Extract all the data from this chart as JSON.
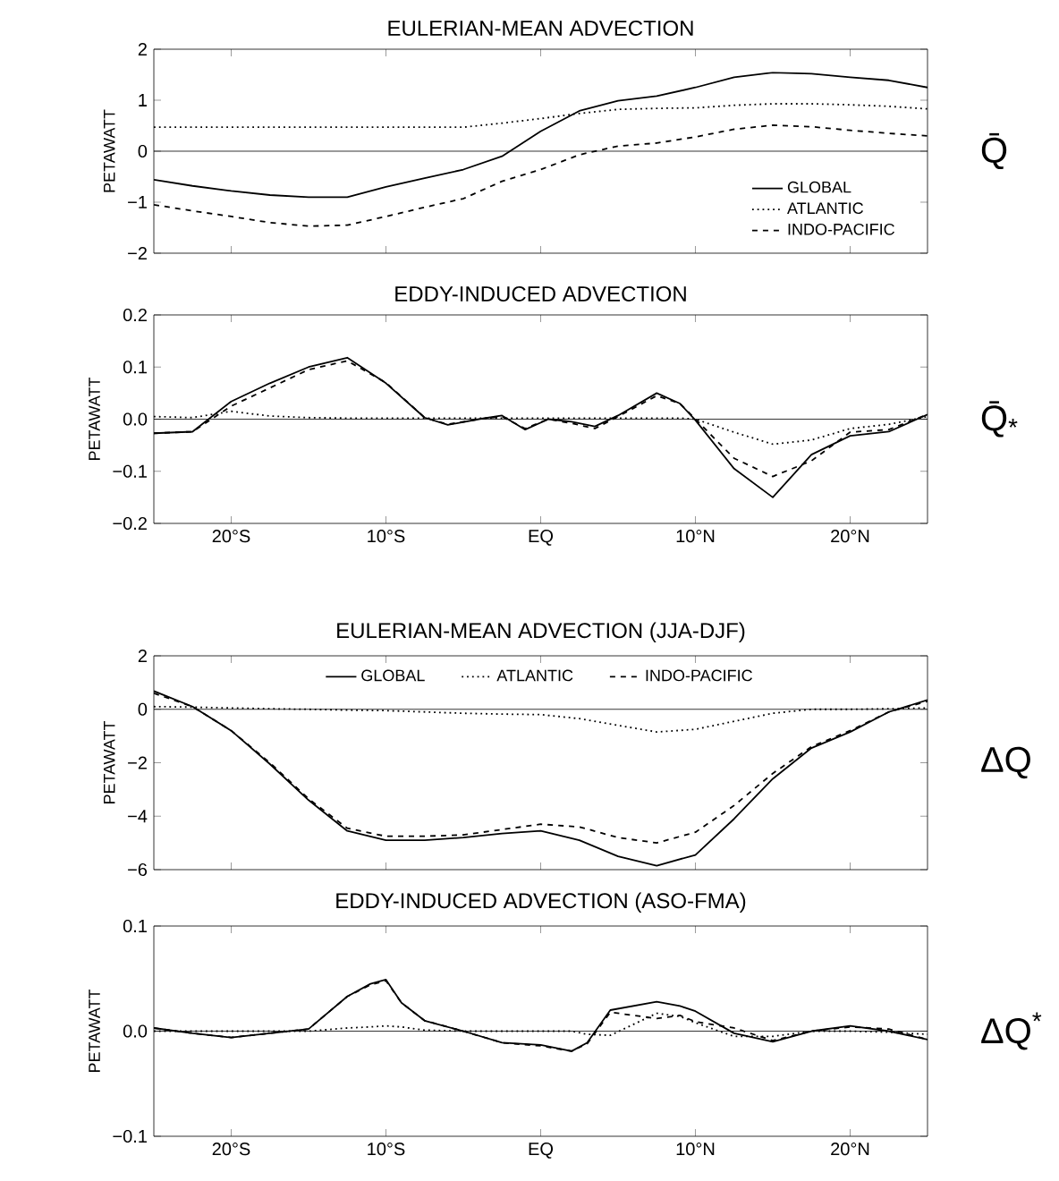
{
  "chart_data": [
    {
      "type": "line",
      "title": "EULERIAN-MEAN ADVECTION",
      "ylabel": "PETAWATT",
      "xlim": [
        -25,
        25
      ],
      "ylim": [
        -2,
        2
      ],
      "xticks": [
        {
          "value": -20,
          "label": null
        },
        {
          "value": -10,
          "label": null
        },
        {
          "value": 0,
          "label": null
        },
        {
          "value": 10,
          "label": null
        },
        {
          "value": 20,
          "label": null
        }
      ],
      "yticks": [
        {
          "value": -2,
          "label": "−2"
        },
        {
          "value": -1,
          "label": "−1"
        },
        0,
        1,
        2
      ],
      "tick_labels": "y",
      "legend": "bottom right",
      "ref_lines": [
        {
          "axis": "y",
          "value": 0
        }
      ],
      "annotations": [
        "Q̄"
      ],
      "x": [
        -25,
        -22.5,
        -20,
        -17.5,
        -15,
        -12.5,
        -10,
        -7.5,
        -5,
        -2.5,
        0,
        2.5,
        5,
        7.5,
        10,
        12.5,
        15,
        17.5,
        20,
        22.5,
        25
      ],
      "series": [
        {
          "name": "GLOBAL",
          "color": "#000000",
          "line_style": "solid",
          "values": [
            -0.56,
            -0.68,
            -0.78,
            -0.86,
            -0.9,
            -0.9,
            -0.7,
            -0.53,
            -0.36,
            -0.1,
            0.39,
            0.79,
            0.99,
            1.08,
            1.25,
            1.45,
            1.54,
            1.52,
            1.45,
            1.39,
            1.25
          ]
        },
        {
          "name": "ATLANTIC",
          "color": "#000000",
          "line_style": "dotted",
          "values": [
            0.47,
            0.47,
            0.47,
            0.47,
            0.47,
            0.47,
            0.47,
            0.47,
            0.47,
            0.55,
            0.64,
            0.74,
            0.82,
            0.84,
            0.85,
            0.9,
            0.93,
            0.93,
            0.91,
            0.88,
            0.83
          ]
        },
        {
          "name": "INDO-PACIFIC",
          "color": "#000000",
          "line_style": "dashed",
          "values": [
            -1.05,
            -1.17,
            -1.28,
            -1.4,
            -1.47,
            -1.45,
            -1.28,
            -1.1,
            -0.93,
            -0.59,
            -0.36,
            -0.07,
            0.1,
            0.16,
            0.28,
            0.43,
            0.51,
            0.48,
            0.41,
            0.35,
            0.3
          ]
        }
      ]
    },
    {
      "type": "line",
      "title": "EDDY-INDUCED ADVECTION",
      "ylabel": "PETAWATT",
      "xlim": [
        -25,
        25
      ],
      "ylim": [
        -0.2,
        0.2
      ],
      "xticks": [
        {
          "value": -20,
          "label": "20°S"
        },
        {
          "value": -10,
          "label": "10°S"
        },
        {
          "value": 0,
          "label": "EQ"
        },
        {
          "value": 10,
          "label": "10°N"
        },
        {
          "value": 20,
          "label": "20°N"
        }
      ],
      "yticks": [
        {
          "value": -0.2,
          "label": "−0.2"
        },
        {
          "value": -0.1,
          "label": "−0.1"
        },
        {
          "value": 0,
          "label": "0.0"
        },
        0.1,
        0.2
      ],
      "ref_lines": [
        {
          "axis": "y",
          "value": 0
        }
      ],
      "annotations": [
        "Q̄$_{*}$"
      ],
      "x": [
        -25,
        -22.5,
        -20,
        -17.5,
        -15,
        -12.5,
        -10,
        -7.5,
        -6,
        -4,
        -2.5,
        -1,
        0.5,
        2,
        3.5,
        5,
        7.5,
        9,
        10,
        12.5,
        15,
        17.5,
        20,
        22.5,
        25
      ],
      "series": [
        {
          "color": "#000000",
          "line_style": "solid",
          "values": [
            -0.027,
            -0.024,
            0.034,
            0.069,
            0.1,
            0.118,
            0.069,
            0.003,
            -0.011,
            0.0,
            0.007,
            -0.02,
            0.0,
            -0.005,
            -0.014,
            0.007,
            0.05,
            0.03,
            -0.002,
            -0.095,
            -0.15,
            -0.068,
            -0.032,
            -0.024,
            0.009
          ]
        },
        {
          "color": "#000000",
          "line_style": "dotted",
          "values": [
            0.005,
            0.003,
            0.015,
            0.006,
            0.003,
            0.002,
            0.002,
            0.002,
            0.002,
            0.002,
            0.002,
            0.002,
            0.002,
            0.002,
            0.002,
            0.002,
            0.002,
            0.002,
            0.0,
            -0.025,
            -0.048,
            -0.04,
            -0.018,
            -0.01,
            0.005
          ]
        },
        {
          "color": "#000000",
          "line_style": "dashed",
          "values": [
            -0.027,
            -0.024,
            0.025,
            0.06,
            0.095,
            0.112,
            0.07,
            0.003,
            -0.01,
            0.0,
            0.005,
            -0.018,
            0.0,
            -0.008,
            -0.018,
            0.005,
            0.045,
            0.03,
            0.0,
            -0.075,
            -0.11,
            -0.08,
            -0.025,
            -0.02,
            0.009
          ]
        }
      ]
    },
    {
      "type": "line",
      "title": "EULERIAN-MEAN ADVECTION (JJA-DJF)",
      "ylabel": "PETAWATT",
      "xlim": [
        -25,
        25
      ],
      "ylim": [
        -6,
        2
      ],
      "xticks": [
        {
          "value": -20,
          "label": null
        },
        {
          "value": -10,
          "label": null
        },
        {
          "value": 0,
          "label": null
        },
        {
          "value": 10,
          "label": null
        },
        {
          "value": 20,
          "label": null
        }
      ],
      "yticks": [
        {
          "value": -6,
          "label": "−6"
        },
        {
          "value": -4,
          "label": "−4"
        },
        {
          "value": -2,
          "label": "−2"
        },
        0,
        2
      ],
      "tick_labels": "y",
      "legend": "top",
      "ref_lines": [
        {
          "axis": "y",
          "value": 0
        }
      ],
      "annotations": [
        "ΔQ"
      ],
      "x": [
        -25,
        -22.5,
        -20,
        -17.5,
        -15,
        -12.5,
        -10,
        -7.5,
        -5,
        -2.5,
        0,
        2.5,
        5,
        7.5,
        10,
        12.5,
        15,
        17.5,
        20,
        22.5,
        25
      ],
      "series": [
        {
          "name": "GLOBAL",
          "color": "#000000",
          "line_style": "solid",
          "values": [
            0.68,
            0.1,
            -0.8,
            -2.05,
            -3.4,
            -4.55,
            -4.9,
            -4.9,
            -4.8,
            -4.65,
            -4.55,
            -4.9,
            -5.5,
            -5.85,
            -5.45,
            -4.1,
            -2.6,
            -1.45,
            -0.85,
            -0.1,
            0.35
          ]
        },
        {
          "name": "ATLANTIC",
          "color": "#000000",
          "line_style": "dotted",
          "values": [
            0.1,
            0.08,
            0.05,
            0.02,
            0.0,
            -0.03,
            -0.05,
            -0.1,
            -0.15,
            -0.18,
            -0.2,
            -0.35,
            -0.6,
            -0.85,
            -0.75,
            -0.45,
            -0.15,
            0.0,
            0.0,
            0.02,
            0.05
          ]
        },
        {
          "name": "INDO-PACIFIC",
          "color": "#000000",
          "line_style": "dashed",
          "values": [
            0.6,
            0.1,
            -0.8,
            -2.0,
            -3.35,
            -4.45,
            -4.75,
            -4.75,
            -4.7,
            -4.5,
            -4.3,
            -4.4,
            -4.8,
            -5.0,
            -4.6,
            -3.6,
            -2.4,
            -1.4,
            -0.8,
            -0.1,
            0.3
          ]
        }
      ]
    },
    {
      "type": "line",
      "title": "EDDY-INDUCED ADVECTION (ASO-FMA)",
      "ylabel": "PETAWATT",
      "xlim": [
        -25,
        25
      ],
      "ylim": [
        -0.1,
        0.1
      ],
      "xticks": [
        {
          "value": -20,
          "label": "20°S"
        },
        {
          "value": -10,
          "label": "10°S"
        },
        {
          "value": 0,
          "label": "EQ"
        },
        {
          "value": 10,
          "label": "10°N"
        },
        {
          "value": 20,
          "label": "20°N"
        }
      ],
      "yticks": [
        {
          "value": -0.1,
          "label": "−0.1"
        },
        {
          "value": 0,
          "label": "0.0"
        },
        0.1
      ],
      "ref_lines": [
        {
          "axis": "y",
          "value": 0
        }
      ],
      "annotations": [
        "ΔQ$^{*}$"
      ],
      "x": [
        -25,
        -22.5,
        -20,
        -17.5,
        -15,
        -12.5,
        -11,
        -10,
        -9,
        -7.5,
        -5,
        -2.5,
        0,
        2,
        3,
        4.5,
        7.5,
        9,
        10,
        12.5,
        15,
        17.5,
        20,
        22.5,
        25
      ],
      "series": [
        {
          "color": "#000000",
          "line_style": "solid",
          "values": [
            0.003,
            -0.002,
            -0.006,
            -0.002,
            0.002,
            0.033,
            0.045,
            0.049,
            0.027,
            0.01,
            0.0,
            -0.011,
            -0.013,
            -0.019,
            -0.011,
            0.02,
            0.028,
            0.024,
            0.019,
            -0.002,
            -0.01,
            0.0,
            0.005,
            0.0,
            -0.008
          ]
        },
        {
          "color": "#000000",
          "line_style": "dotted",
          "values": [
            0.0,
            0.0,
            0.0,
            0.0,
            0.0,
            0.003,
            0.004,
            0.005,
            0.004,
            0.001,
            0.0,
            0.0,
            0.0,
            0.0,
            -0.003,
            -0.004,
            0.017,
            0.014,
            0.008,
            -0.005,
            -0.005,
            0.0,
            0.0,
            -0.001,
            -0.003
          ]
        },
        {
          "color": "#000000",
          "line_style": "dashed",
          "values": [
            0.003,
            -0.002,
            -0.006,
            -0.002,
            0.002,
            0.033,
            0.044,
            0.048,
            0.027,
            0.01,
            0.0,
            -0.011,
            -0.014,
            -0.019,
            -0.012,
            0.018,
            0.012,
            0.015,
            0.009,
            0.003,
            -0.009,
            0.0,
            0.004,
            0.002,
            -0.008
          ]
        }
      ]
    }
  ]
}
